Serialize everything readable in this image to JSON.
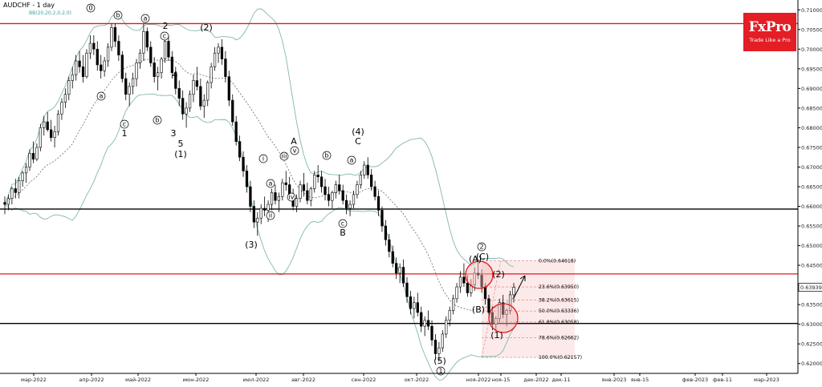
{
  "chart_data": {
    "type": "candlestick",
    "title": "AUDCHF - 1 day",
    "subtitle": "BB(20,20,2,0,2,0)",
    "ylim": [
      0.6175,
      0.7125
    ],
    "y_ticks": [
      "0.71000",
      "0.70500",
      "0.70000",
      "0.69500",
      "0.69000",
      "0.68500",
      "0.68000",
      "0.67500",
      "0.67000",
      "0.66500",
      "0.66000",
      "0.65500",
      "0.65000",
      "0.64500",
      "0.64000",
      "0.63500",
      "0.63000",
      "0.62500",
      "0.62000"
    ],
    "x_ticks": [
      "мар-2022",
      "апр-2022",
      "май-2022",
      "июн-2022",
      "июл-2022",
      "авг-2022",
      "сен-2022",
      "окт-2022",
      "ноя-2022",
      "ноя-15",
      "дек-2022",
      "дек-11",
      "янв-2023",
      "янв-15",
      "фев-2023",
      "фев-11",
      "мар-2023"
    ],
    "current_price": "0.63939",
    "horizontal_lines": [
      {
        "value": 0.7065,
        "color": "#e01818"
      },
      {
        "value": 0.6593,
        "color": "#000000"
      },
      {
        "value": 0.6428,
        "color": "#e01818"
      },
      {
        "value": 0.6302,
        "color": "#000000"
      }
    ],
    "fibonacci": [
      {
        "label": "0.0%(0.64618)",
        "value": 0.64618
      },
      {
        "label": "23.6%(0.63950)",
        "value": 0.6395
      },
      {
        "label": "38.2%(0.63615)",
        "value": 0.63615
      },
      {
        "label": "50.0%(0.63336)",
        "value": 0.63336
      },
      {
        "label": "61.8%(0.63058)",
        "value": 0.63058
      },
      {
        "label": "78.6%(0.62662)",
        "value": 0.62662
      },
      {
        "label": "100.0%(0.62157)",
        "value": 0.62157
      }
    ],
    "wave_labels": [
      {
        "text": "0",
        "circled": true
      },
      {
        "text": "b",
        "circled": true
      },
      {
        "text": "a",
        "circled": true
      },
      {
        "text": "2",
        "circled": false
      },
      {
        "text": "c",
        "circled": true
      },
      {
        "text": "4",
        "circled": false
      },
      {
        "text": "(2)",
        "circled": false
      },
      {
        "text": "a",
        "circled": true
      },
      {
        "text": "b",
        "circled": true
      },
      {
        "text": "c",
        "circled": true
      },
      {
        "text": "1",
        "circled": false
      },
      {
        "text": "3",
        "circled": false
      },
      {
        "text": "5",
        "circled": false
      },
      {
        "text": "(1)",
        "circled": false
      },
      {
        "text": "(3)",
        "circled": false
      },
      {
        "text": "A",
        "circled": false
      },
      {
        "text": "iii",
        "circled": true
      },
      {
        "text": "v",
        "circled": true
      },
      {
        "text": "i",
        "circled": true
      },
      {
        "text": "b",
        "circled": true
      },
      {
        "text": "ii",
        "circled": true
      },
      {
        "text": "iv",
        "circled": true
      },
      {
        "text": "a",
        "circled": true
      },
      {
        "text": "c",
        "circled": true
      },
      {
        "text": "B",
        "circled": false
      },
      {
        "text": "(4)",
        "circled": false
      },
      {
        "text": "C",
        "circled": false
      },
      {
        "text": "a",
        "circled": true
      },
      {
        "text": "(5)",
        "circled": false
      },
      {
        "text": "1",
        "circled": true
      },
      {
        "text": "(A)",
        "circled": false
      },
      {
        "text": "2",
        "circled": true
      },
      {
        "text": "(C)",
        "circled": false
      },
      {
        "text": "(2)",
        "circled": false
      },
      {
        "text": "(B)",
        "circled": false
      },
      {
        "text": "(1)",
        "circled": false
      }
    ],
    "series": [
      {
        "name": "AUDCHF",
        "type": "candlestick",
        "values": [
          [
            0.661,
            0.6625,
            0.658,
            0.6605
          ],
          [
            0.6605,
            0.663,
            0.659,
            0.662
          ],
          [
            0.662,
            0.665,
            0.6605,
            0.6645
          ],
          [
            0.6645,
            0.667,
            0.662,
            0.6635
          ],
          [
            0.6635,
            0.6675,
            0.662,
            0.6665
          ],
          [
            0.6665,
            0.669,
            0.665,
            0.6685
          ],
          [
            0.6685,
            0.671,
            0.666,
            0.67
          ],
          [
            0.67,
            0.6745,
            0.669,
            0.6735
          ],
          [
            0.6735,
            0.6765,
            0.671,
            0.672
          ],
          [
            0.672,
            0.676,
            0.6715,
            0.675
          ],
          [
            0.675,
            0.681,
            0.674,
            0.68
          ],
          [
            0.68,
            0.683,
            0.678,
            0.6815
          ],
          [
            0.6815,
            0.684,
            0.679,
            0.6795
          ],
          [
            0.6795,
            0.682,
            0.6765,
            0.6775
          ],
          [
            0.6775,
            0.6805,
            0.675,
            0.679
          ],
          [
            0.679,
            0.6845,
            0.678,
            0.6835
          ],
          [
            0.6835,
            0.6875,
            0.682,
            0.6865
          ],
          [
            0.6865,
            0.69,
            0.685,
            0.6885
          ],
          [
            0.6885,
            0.693,
            0.687,
            0.692
          ],
          [
            0.692,
            0.6955,
            0.69,
            0.6935
          ],
          [
            0.6935,
            0.6985,
            0.692,
            0.697
          ],
          [
            0.697,
            0.6995,
            0.694,
            0.6955
          ],
          [
            0.6955,
            0.6985,
            0.6915,
            0.693
          ],
          [
            0.693,
            0.7,
            0.6925,
            0.699
          ],
          [
            0.699,
            0.7035,
            0.6975,
            0.7015
          ],
          [
            0.7015,
            0.7035,
            0.6985,
            0.7
          ],
          [
            0.7,
            0.702,
            0.6945,
            0.696
          ],
          [
            0.696,
            0.6985,
            0.6925,
            0.6945
          ],
          [
            0.6945,
            0.698,
            0.693,
            0.697
          ],
          [
            0.697,
            0.7015,
            0.6955,
            0.7005
          ],
          [
            0.7005,
            0.7065,
            0.6995,
            0.7055
          ],
          [
            0.7055,
            0.7065,
            0.7005,
            0.702
          ],
          [
            0.702,
            0.7035,
            0.697,
            0.6985
          ],
          [
            0.6985,
            0.6995,
            0.6915,
            0.6925
          ],
          [
            0.6925,
            0.694,
            0.687,
            0.6885
          ],
          [
            0.6885,
            0.6915,
            0.6855,
            0.6905
          ],
          [
            0.6905,
            0.694,
            0.6885,
            0.6925
          ],
          [
            0.6925,
            0.6975,
            0.6905,
            0.6965
          ],
          [
            0.6965,
            0.7,
            0.695,
            0.699
          ],
          [
            0.699,
            0.7065,
            0.697,
            0.7045
          ],
          [
            0.7045,
            0.7055,
            0.6995,
            0.7005
          ],
          [
            0.7005,
            0.702,
            0.6955,
            0.6965
          ],
          [
            0.6965,
            0.698,
            0.6915,
            0.693
          ],
          [
            0.693,
            0.6955,
            0.6895,
            0.694
          ],
          [
            0.694,
            0.698,
            0.6925,
            0.6975
          ],
          [
            0.6975,
            0.703,
            0.6965,
            0.702
          ],
          [
            0.702,
            0.7035,
            0.697,
            0.698
          ],
          [
            0.698,
            0.6995,
            0.6925,
            0.694
          ],
          [
            0.694,
            0.6955,
            0.6885,
            0.69
          ],
          [
            0.69,
            0.692,
            0.6855,
            0.6875
          ],
          [
            0.6875,
            0.6895,
            0.682,
            0.6835
          ],
          [
            0.6835,
            0.6865,
            0.68,
            0.685
          ],
          [
            0.685,
            0.6895,
            0.684,
            0.6885
          ],
          [
            0.6885,
            0.6935,
            0.6865,
            0.692
          ],
          [
            0.692,
            0.6955,
            0.6895,
            0.6905
          ],
          [
            0.6905,
            0.6925,
            0.6845,
            0.6855
          ],
          [
            0.6855,
            0.6885,
            0.6825,
            0.687
          ],
          [
            0.687,
            0.692,
            0.6855,
            0.6915
          ],
          [
            0.6915,
            0.6965,
            0.69,
            0.6955
          ],
          [
            0.6955,
            0.7005,
            0.6945,
            0.699
          ],
          [
            0.699,
            0.7015,
            0.6965,
            0.7005
          ],
          [
            0.7005,
            0.7025,
            0.696,
            0.6975
          ],
          [
            0.6975,
            0.6995,
            0.6915,
            0.693
          ],
          [
            0.693,
            0.6945,
            0.6855,
            0.687
          ],
          [
            0.687,
            0.6885,
            0.6805,
            0.6815
          ],
          [
            0.6815,
            0.683,
            0.6755,
            0.6765
          ],
          [
            0.6765,
            0.678,
            0.6715,
            0.6725
          ],
          [
            0.6725,
            0.674,
            0.6675,
            0.669
          ],
          [
            0.669,
            0.6705,
            0.6635,
            0.665
          ],
          [
            0.665,
            0.6665,
            0.6585,
            0.66
          ],
          [
            0.66,
            0.6615,
            0.6545,
            0.656
          ],
          [
            0.656,
            0.6585,
            0.6525,
            0.657
          ],
          [
            0.657,
            0.6605,
            0.6555,
            0.6595
          ],
          [
            0.6595,
            0.6625,
            0.6575,
            0.659
          ],
          [
            0.659,
            0.6615,
            0.656,
            0.6605
          ],
          [
            0.6605,
            0.6645,
            0.659,
            0.6635
          ],
          [
            0.6635,
            0.6655,
            0.6605,
            0.6615
          ],
          [
            0.6615,
            0.6635,
            0.6585,
            0.6625
          ],
          [
            0.6625,
            0.667,
            0.6615,
            0.666
          ],
          [
            0.666,
            0.669,
            0.664,
            0.6655
          ],
          [
            0.6655,
            0.6675,
            0.6615,
            0.6625
          ],
          [
            0.6625,
            0.6645,
            0.659,
            0.66
          ],
          [
            0.66,
            0.663,
            0.6585,
            0.662
          ],
          [
            0.662,
            0.6665,
            0.661,
            0.6655
          ],
          [
            0.6655,
            0.6685,
            0.6625,
            0.664
          ],
          [
            0.664,
            0.666,
            0.6605,
            0.6615
          ],
          [
            0.6615,
            0.665,
            0.66,
            0.6645
          ],
          [
            0.6645,
            0.669,
            0.6635,
            0.668
          ],
          [
            0.668,
            0.6705,
            0.666,
            0.6675
          ],
          [
            0.6675,
            0.669,
            0.6635,
            0.665
          ],
          [
            0.665,
            0.667,
            0.6615,
            0.663
          ],
          [
            0.663,
            0.665,
            0.66,
            0.6615
          ],
          [
            0.6615,
            0.664,
            0.6595,
            0.6635
          ],
          [
            0.6635,
            0.6665,
            0.662,
            0.6655
          ],
          [
            0.6655,
            0.668,
            0.663,
            0.664
          ],
          [
            0.664,
            0.6655,
            0.6605,
            0.6615
          ],
          [
            0.6615,
            0.663,
            0.658,
            0.6595
          ],
          [
            0.6595,
            0.6615,
            0.6575,
            0.6605
          ],
          [
            0.6605,
            0.664,
            0.6595,
            0.663
          ],
          [
            0.663,
            0.6665,
            0.662,
            0.6655
          ],
          [
            0.6655,
            0.669,
            0.6645,
            0.668
          ],
          [
            0.668,
            0.6715,
            0.667,
            0.6705
          ],
          [
            0.6705,
            0.6725,
            0.667,
            0.668
          ],
          [
            0.668,
            0.6695,
            0.664,
            0.665
          ],
          [
            0.665,
            0.6665,
            0.6615,
            0.6625
          ],
          [
            0.6625,
            0.664,
            0.6575,
            0.659
          ],
          [
            0.659,
            0.66,
            0.6535,
            0.655
          ],
          [
            0.655,
            0.6565,
            0.65,
            0.6515
          ],
          [
            0.6515,
            0.653,
            0.647,
            0.6485
          ],
          [
            0.6485,
            0.65,
            0.6445,
            0.6455
          ],
          [
            0.6455,
            0.647,
            0.6415,
            0.643
          ],
          [
            0.643,
            0.6455,
            0.6405,
            0.6445
          ],
          [
            0.6445,
            0.6465,
            0.6395,
            0.6405
          ],
          [
            0.6405,
            0.642,
            0.6355,
            0.637
          ],
          [
            0.637,
            0.6385,
            0.6325,
            0.634
          ],
          [
            0.634,
            0.637,
            0.6315,
            0.6355
          ],
          [
            0.6355,
            0.638,
            0.632,
            0.633
          ],
          [
            0.633,
            0.6345,
            0.628,
            0.6295
          ],
          [
            0.6295,
            0.632,
            0.627,
            0.631
          ],
          [
            0.631,
            0.6335,
            0.6285,
            0.6295
          ],
          [
            0.6295,
            0.631,
            0.6245,
            0.626
          ],
          [
            0.626,
            0.6275,
            0.621,
            0.6225
          ],
          [
            0.6225,
            0.6255,
            0.6205,
            0.624
          ],
          [
            0.624,
            0.6285,
            0.623,
            0.6275
          ],
          [
            0.6275,
            0.632,
            0.6265,
            0.631
          ],
          [
            0.631,
            0.6345,
            0.6295,
            0.6335
          ],
          [
            0.6335,
            0.6375,
            0.6325,
            0.6365
          ],
          [
            0.6365,
            0.6405,
            0.6355,
            0.6395
          ],
          [
            0.6395,
            0.6435,
            0.638,
            0.642
          ],
          [
            0.642,
            0.6455,
            0.6395,
            0.6405
          ],
          [
            0.6405,
            0.6425,
            0.637,
            0.638
          ],
          [
            0.638,
            0.6415,
            0.637,
            0.64
          ],
          [
            0.64,
            0.6445,
            0.6385,
            0.643
          ],
          [
            0.643,
            0.6462,
            0.6415,
            0.6425
          ],
          [
            0.6425,
            0.644,
            0.638,
            0.6395
          ],
          [
            0.6395,
            0.6405,
            0.635,
            0.6365
          ],
          [
            0.6365,
            0.6375,
            0.6315,
            0.633
          ],
          [
            0.633,
            0.6345,
            0.6285,
            0.63
          ],
          [
            0.63,
            0.632,
            0.6285,
            0.6315
          ],
          [
            0.6315,
            0.6365,
            0.6305,
            0.6355
          ],
          [
            0.6355,
            0.6375,
            0.6315,
            0.6325
          ],
          [
            0.6325,
            0.634,
            0.6295,
            0.6335
          ],
          [
            0.6335,
            0.6385,
            0.6325,
            0.6375
          ],
          [
            0.6375,
            0.6405,
            0.6355,
            0.6394
          ]
        ]
      }
    ]
  },
  "logo": {
    "brand": "FxPro",
    "tagline": "Trade Like a Pro"
  }
}
